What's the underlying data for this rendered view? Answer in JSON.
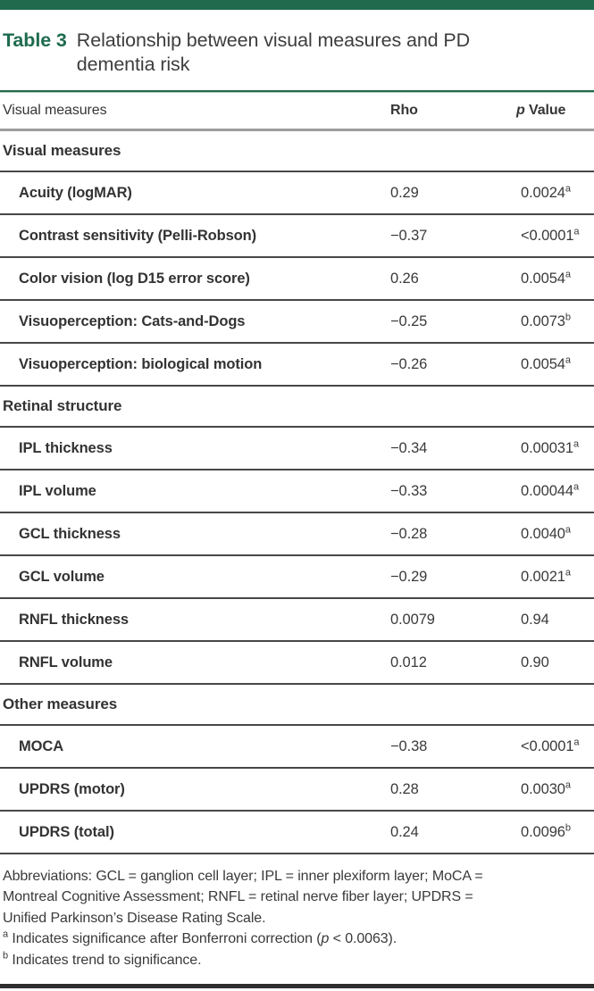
{
  "caption": {
    "table_number": "Table 3",
    "title": "Relationship between visual measures and PD dementia risk"
  },
  "colors": {
    "accent_green": "#216a4e",
    "caption_green": "#1e6b4e",
    "row_rule_dark": "#474747",
    "header_rule_gray": "#9c9c9c",
    "text_dark": "#3a3a3a"
  },
  "table": {
    "headers": {
      "measures": "Visual measures",
      "rho": "Rho",
      "p_italic": "p",
      "p_rest": " Value"
    },
    "sections": [
      {
        "heading": "Visual measures",
        "rows": [
          {
            "label": "Acuity (logMAR)",
            "rho": "0.29",
            "p": "0.0024",
            "sup": "a"
          },
          {
            "label": "Contrast sensitivity (Pelli-Robson)",
            "rho": "−0.37",
            "p": "<0.0001",
            "sup": "a"
          },
          {
            "label": "Color vision (log D15 error score)",
            "rho": "0.26",
            "p": "0.0054",
            "sup": "a"
          },
          {
            "label": "Visuoperception: Cats-and-Dogs",
            "rho": "−0.25",
            "p": "0.0073",
            "sup": "b"
          },
          {
            "label": "Visuoperception: biological motion",
            "rho": "−0.26",
            "p": "0.0054",
            "sup": "a"
          }
        ]
      },
      {
        "heading": "Retinal structure",
        "rows": [
          {
            "label": "IPL thickness",
            "rho": "−0.34",
            "p": "0.00031",
            "sup": "a"
          },
          {
            "label": "IPL volume",
            "rho": "−0.33",
            "p": "0.00044",
            "sup": "a"
          },
          {
            "label": "GCL thickness",
            "rho": "−0.28",
            "p": "0.0040",
            "sup": "a"
          },
          {
            "label": "GCL volume",
            "rho": "−0.29",
            "p": "0.0021",
            "sup": "a"
          },
          {
            "label": "RNFL thickness",
            "rho": "0.0079",
            "p": "0.94",
            "sup": ""
          },
          {
            "label": "RNFL volume",
            "rho": "0.012",
            "p": "0.90",
            "sup": ""
          }
        ]
      },
      {
        "heading": "Other measures",
        "rows": [
          {
            "label": "MOCA",
            "rho": "−0.38",
            "p": "<0.0001",
            "sup": "a"
          },
          {
            "label": "UPDRS (motor)",
            "rho": "0.28",
            "p": "0.0030",
            "sup": "a"
          },
          {
            "label": "UPDRS (total)",
            "rho": "0.24",
            "p": "0.0096",
            "sup": "b"
          }
        ]
      }
    ]
  },
  "footnotes": {
    "abbreviations_lines": [
      "Abbreviations: GCL = ganglion cell layer; IPL = inner plexiform layer; MoCA =",
      "Montreal Cognitive Assessment; RNFL = retinal nerve fiber layer; UPDRS =",
      "Unified Parkinson’s Disease Rating Scale."
    ],
    "note_a": {
      "sup": "a",
      "pre": " Indicates significance after Bonferroni correction (",
      "p": "p",
      "post": " < 0.0063)."
    },
    "note_b": {
      "sup": "b",
      "text": " Indicates trend to significance."
    }
  }
}
